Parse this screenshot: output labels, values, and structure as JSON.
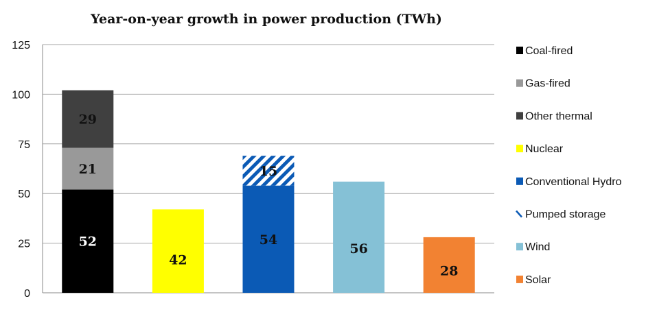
{
  "chart_data": {
    "type": "bar",
    "stacked": true,
    "title": "Year-on-year growth in power production (TWh)",
    "xlabel": "",
    "ylabel": "",
    "ylim": [
      0,
      125
    ],
    "yticks": [
      0,
      25,
      50,
      75,
      100,
      125
    ],
    "grid": true,
    "legend_position": "right",
    "series": [
      {
        "name": "Coal-fired",
        "color": "#000000",
        "pattern": "solid",
        "label_color": "#ffffff"
      },
      {
        "name": "Gas-fired",
        "color": "#999999",
        "pattern": "solid",
        "label_color": "#111111"
      },
      {
        "name": "Other thermal",
        "color": "#404040",
        "pattern": "solid",
        "label_color": "#111111"
      },
      {
        "name": "Nuclear",
        "color": "#ffff00",
        "pattern": "solid",
        "label_color": "#111111"
      },
      {
        "name": "Conventional Hydro",
        "color": "#0b5ab5",
        "pattern": "solid",
        "label_color": "#111111"
      },
      {
        "name": "Pumped storage",
        "color": "#0b5ab5",
        "pattern": "hatch",
        "label_color": "#111111"
      },
      {
        "name": "Wind",
        "color": "#85c1d6",
        "pattern": "solid",
        "label_color": "#111111"
      },
      {
        "name": "Solar",
        "color": "#f28232",
        "pattern": "solid",
        "label_color": "#111111"
      }
    ],
    "bars": [
      {
        "segments": [
          {
            "series": "Coal-fired",
            "value": 52,
            "label": "52"
          },
          {
            "series": "Gas-fired",
            "value": 21,
            "label": "21"
          },
          {
            "series": "Other thermal",
            "value": 29,
            "label": "29"
          }
        ]
      },
      {
        "segments": [
          {
            "series": "Nuclear",
            "value": 42,
            "label": "42"
          }
        ]
      },
      {
        "segments": [
          {
            "series": "Conventional Hydro",
            "value": 54,
            "label": "54"
          },
          {
            "series": "Pumped storage",
            "value": 15,
            "label": "15"
          }
        ]
      },
      {
        "segments": [
          {
            "series": "Wind",
            "value": 56,
            "label": "56"
          }
        ]
      },
      {
        "segments": [
          {
            "series": "Solar",
            "value": 28,
            "label": "28"
          }
        ]
      }
    ]
  }
}
